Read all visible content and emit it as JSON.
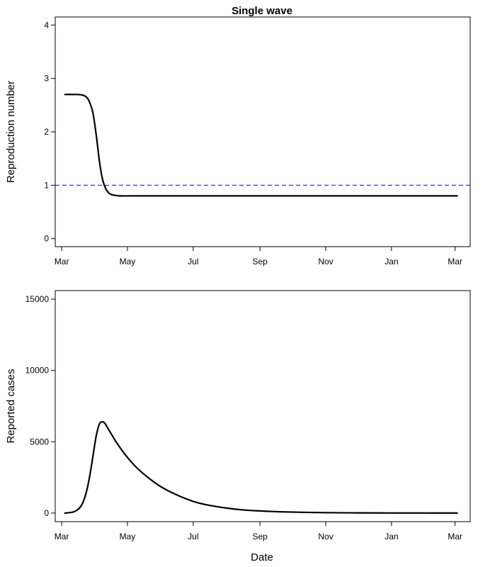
{
  "chart_data": [
    {
      "type": "line",
      "title": "Single wave",
      "xlabel": "",
      "ylabel": "Reproduction number",
      "xlim": [
        "2020-02-24",
        "2021-03-15"
      ],
      "ylim": [
        -0.15,
        4.15
      ],
      "x_ticks": [
        "2020-03-01",
        "2020-05-01",
        "2020-07-01",
        "2020-09-01",
        "2020-11-01",
        "2021-01-01",
        "2021-03-01"
      ],
      "x_tick_labels": [
        "Mar",
        "May",
        "Jul",
        "Sep",
        "Nov",
        "Jan",
        "Mar"
      ],
      "y_ticks": [
        0,
        1,
        2,
        3,
        4
      ],
      "y_tick_labels": [
        "0",
        "1",
        "2",
        "3",
        "4"
      ],
      "grid": false,
      "series": [
        {
          "color": "#000000",
          "style": "solid",
          "x": [
            "2020-03-04",
            "2020-03-14",
            "2020-03-20",
            "2020-03-24",
            "2020-03-27",
            "2020-03-30",
            "2020-04-02",
            "2020-04-05",
            "2020-04-08",
            "2020-04-11",
            "2020-04-14",
            "2020-04-17",
            "2020-04-20",
            "2020-04-25",
            "2020-05-05",
            "2020-06-01",
            "2020-09-01",
            "2020-12-01",
            "2021-03-03"
          ],
          "y": [
            2.7,
            2.7,
            2.69,
            2.65,
            2.55,
            2.35,
            1.95,
            1.45,
            1.1,
            0.93,
            0.85,
            0.82,
            0.81,
            0.8,
            0.8,
            0.8,
            0.8,
            0.8,
            0.8
          ]
        }
      ],
      "reference_lines": [
        {
          "y": 1,
          "color": "#3333ff",
          "style": "dashed"
        }
      ]
    },
    {
      "type": "line",
      "title": "",
      "xlabel": "Date",
      "ylabel": "Reported cases",
      "xlim": [
        "2020-02-24",
        "2021-03-15"
      ],
      "ylim": [
        -600,
        15600
      ],
      "x_ticks": [
        "2020-03-01",
        "2020-05-01",
        "2020-07-01",
        "2020-09-01",
        "2020-11-01",
        "2021-01-01",
        "2021-03-01"
      ],
      "x_tick_labels": [
        "Mar",
        "May",
        "Jul",
        "Sep",
        "Nov",
        "Jan",
        "Mar"
      ],
      "y_ticks": [
        0,
        5000,
        10000,
        15000
      ],
      "y_tick_labels": [
        "0",
        "5000",
        "10000",
        "15000"
      ],
      "grid": false,
      "series": [
        {
          "color": "#000000",
          "style": "solid",
          "x": [
            "2020-03-04",
            "2020-03-10",
            "2020-03-14",
            "2020-03-18",
            "2020-03-21",
            "2020-03-24",
            "2020-03-27",
            "2020-03-30",
            "2020-04-02",
            "2020-04-05",
            "2020-04-08",
            "2020-04-10",
            "2020-04-12",
            "2020-04-16",
            "2020-04-20",
            "2020-04-25",
            "2020-05-01",
            "2020-05-10",
            "2020-05-20",
            "2020-06-01",
            "2020-06-15",
            "2020-07-01",
            "2020-07-15",
            "2020-08-01",
            "2020-08-15",
            "2020-09-01",
            "2020-09-20",
            "2020-10-10",
            "2020-11-01",
            "2020-12-01",
            "2021-01-01",
            "2021-02-01",
            "2021-03-03"
          ],
          "y": [
            0,
            50,
            150,
            400,
            800,
            1500,
            2600,
            4000,
            5400,
            6250,
            6400,
            6300,
            6050,
            5550,
            5050,
            4500,
            3900,
            3150,
            2500,
            1850,
            1300,
            820,
            560,
            350,
            230,
            150,
            90,
            55,
            30,
            15,
            8,
            4,
            2
          ]
        }
      ]
    }
  ]
}
